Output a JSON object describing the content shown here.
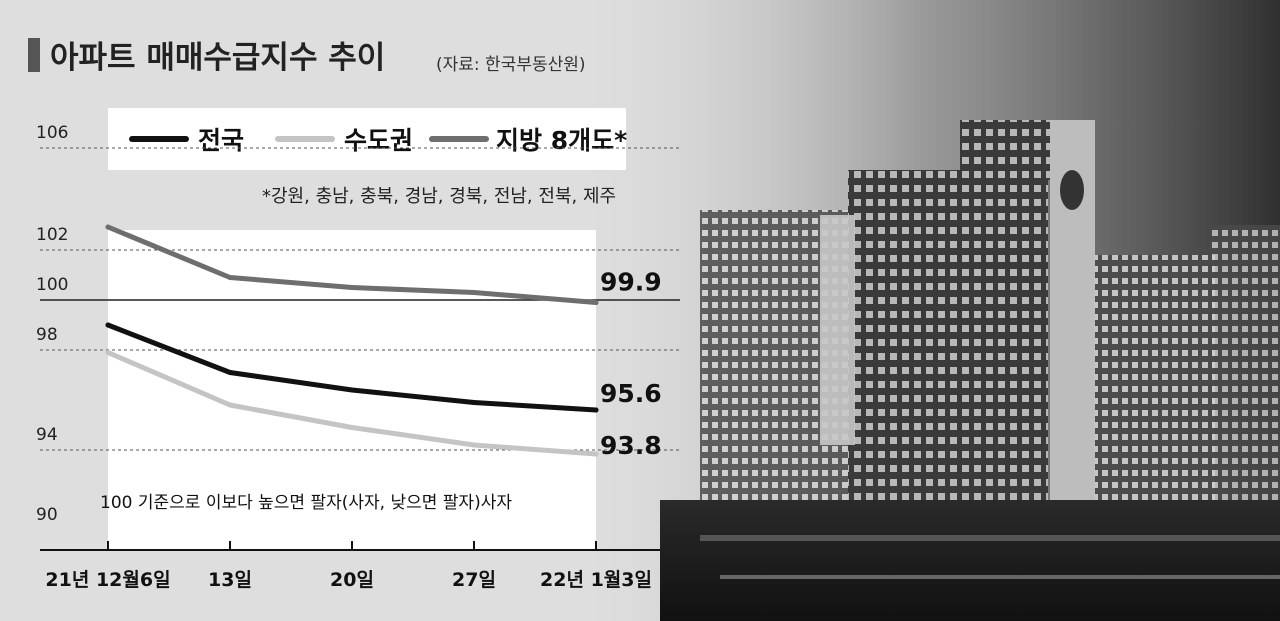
{
  "title": "아파트 매매수급지수 추이",
  "source": "(자료: 한국부동산원)",
  "footnote": "*강원, 충남, 충북, 경남, 경북, 전남, 전북, 제주",
  "annotation": "100 기준으로 이보다 높으면 팔자(사자, 낮으면 팔자)사자",
  "chart_data": {
    "type": "line",
    "categories": [
      "21년 12월6일",
      "13일",
      "20일",
      "27일",
      "22년 1월3일"
    ],
    "yticks": [
      106,
      102,
      100,
      98,
      94,
      90
    ],
    "series": [
      {
        "name": "전국",
        "values": [
          99.0,
          97.1,
          96.4,
          95.9,
          95.6
        ],
        "end_label": "95.6",
        "color": "#111111"
      },
      {
        "name": "수도권",
        "values": [
          97.9,
          95.8,
          94.9,
          94.2,
          93.8
        ],
        "end_label": "93.8",
        "color": "#c4c4c4"
      },
      {
        "name": "지방 8개도*",
        "values": [
          102.9,
          100.9,
          100.5,
          100.3,
          99.9
        ],
        "end_label": "99.9",
        "color": "#6e6e6e"
      }
    ],
    "grid": "dashed"
  }
}
